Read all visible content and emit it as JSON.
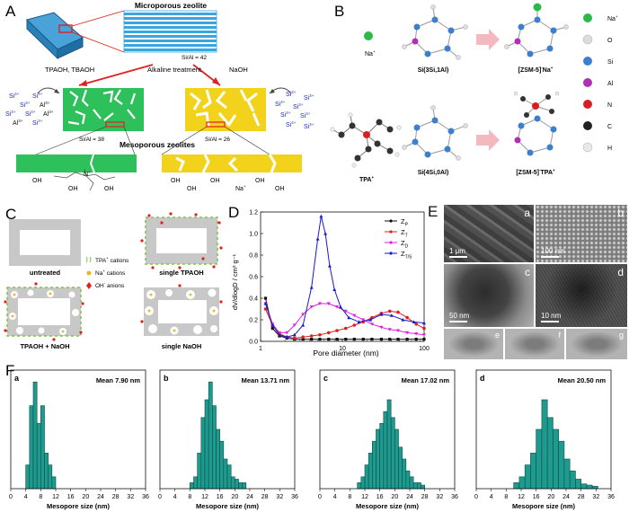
{
  "panels": {
    "A": "A",
    "B": "B",
    "C": "C",
    "D": "D",
    "E": "E",
    "F": "F"
  },
  "panelA": {
    "title": "Microporous zeolite",
    "sial_top": "Si/Al = 42",
    "treatment": "Alkaline treatment",
    "left_reagent": "TPAOH, TBAOH",
    "right_reagent": "NaOH",
    "sial_left": "Si/Al = 38",
    "sial_right": "Si/Al = 26",
    "meso": "Mesoporous zeolites",
    "si": "Si",
    "al": "Al",
    "sup4": "4+",
    "sup3": "3+",
    "oh": "OH",
    "n": "N",
    "na": "Na",
    "plus": "+"
  },
  "panelB": {
    "na_label": "Na",
    "si3_label": "Si(3Si,1Al)",
    "zsm_na_label": "[ZSM-5]",
    "tpa_label": "TPA",
    "si4_label": "Si(4Si,0Al)",
    "zsm_tpa_label": "[ZSM-5]",
    "minus": "-",
    "plus": "+",
    "na_suffix": "Na",
    "tpa_suffix": "TPA",
    "legend": [
      {
        "label": "Na",
        "sup": "+",
        "color": "#2db84a"
      },
      {
        "label": "O",
        "sup": "",
        "color": "#dcdcdc"
      },
      {
        "label": "Si",
        "sup": "",
        "color": "#3c7fd0"
      },
      {
        "label": "Al",
        "sup": "",
        "color": "#b02fb3"
      },
      {
        "label": "N",
        "sup": "",
        "color": "#d92020"
      },
      {
        "label": "C",
        "sup": "",
        "color": "#222222"
      },
      {
        "label": "H",
        "sup": "",
        "color": "#e8e8e8"
      }
    ]
  },
  "panelC": {
    "untreated": "untreated",
    "single_tpaoh": "single TPAOH",
    "tpaoh_naoh": "TPAOH + NaOH",
    "single_naoh": "single NaOH",
    "legend_tpa": "TPA",
    "legend_tpa_tail": " cations",
    "legend_na": "Na",
    "legend_na_tail": " cations",
    "legend_oh": "OH",
    "legend_oh_tail": " anions",
    "plus": "+",
    "minus": "-"
  },
  "chart_data": {
    "type": "line",
    "x_scale": "log",
    "xlabel": "Pore diameter (nm)",
    "ylabel": "dV/dlogD / cm³ g⁻¹",
    "xlim": [
      1,
      100
    ],
    "ylim": [
      0,
      1.2
    ],
    "x_ticks": [
      1,
      10,
      100
    ],
    "y_ticks": [
      0.0,
      0.2,
      0.4,
      0.6,
      0.8,
      1.0,
      1.2
    ],
    "series": [
      {
        "name": "Z_P",
        "sub": "P",
        "color": "#111111",
        "marker": "square",
        "x": [
          1.15,
          1.4,
          1.7,
          2.1,
          2.6,
          3.3,
          4.2,
          5.3,
          6.8,
          8.6,
          11,
          14,
          18,
          23,
          30,
          38,
          48,
          62,
          80,
          100
        ],
        "y": [
          0.4,
          0.12,
          0.05,
          0.03,
          0.02,
          0.02,
          0.02,
          0.02,
          0.02,
          0.02,
          0.02,
          0.02,
          0.02,
          0.02,
          0.02,
          0.02,
          0.02,
          0.02,
          0.02,
          0.02
        ]
      },
      {
        "name": "Z_T",
        "sub": "T",
        "color": "#e02020",
        "marker": "circle",
        "x": [
          1.15,
          1.4,
          1.7,
          2.1,
          2.6,
          3.3,
          4.2,
          5.3,
          6.8,
          8.6,
          11,
          14,
          18,
          23,
          30,
          38,
          48,
          62,
          80,
          100
        ],
        "y": [
          0.3,
          0.15,
          0.07,
          0.04,
          0.03,
          0.04,
          0.05,
          0.06,
          0.08,
          0.1,
          0.12,
          0.15,
          0.18,
          0.22,
          0.26,
          0.28,
          0.27,
          0.22,
          0.16,
          0.12
        ]
      },
      {
        "name": "Z_D",
        "sub": "D",
        "color": "#e020e0",
        "marker": "triangle-down",
        "x": [
          1.15,
          1.4,
          1.7,
          2.1,
          2.6,
          3.3,
          4.2,
          5.3,
          6.8,
          8.6,
          11,
          14,
          18,
          23,
          30,
          38,
          48,
          62,
          80,
          100
        ],
        "y": [
          0.35,
          0.16,
          0.08,
          0.08,
          0.15,
          0.25,
          0.32,
          0.35,
          0.35,
          0.32,
          0.28,
          0.24,
          0.2,
          0.16,
          0.13,
          0.11,
          0.1,
          0.08,
          0.07,
          0.06
        ]
      },
      {
        "name": "Z_TS",
        "sub": "T/S",
        "color": "#1a1acc",
        "marker": "triangle",
        "x": [
          1.15,
          1.4,
          1.7,
          2.1,
          2.6,
          3.3,
          4.2,
          5.0,
          5.5,
          6.2,
          7.0,
          8.0,
          9.5,
          12,
          16,
          22,
          30,
          40,
          55,
          75,
          100
        ],
        "y": [
          0.35,
          0.15,
          0.06,
          0.04,
          0.06,
          0.15,
          0.5,
          0.95,
          1.16,
          1.0,
          0.7,
          0.48,
          0.32,
          0.22,
          0.18,
          0.2,
          0.25,
          0.24,
          0.2,
          0.18,
          0.17
        ]
      }
    ]
  },
  "panelE": {
    "tiles": [
      {
        "label": "a",
        "scale": "1 μm"
      },
      {
        "label": "b",
        "scale": "100 nm"
      },
      {
        "label": "c",
        "scale": "50 nm"
      },
      {
        "label": "d",
        "scale": "10 nm"
      },
      {
        "label": "e",
        "scale": ""
      },
      {
        "label": "f",
        "scale": ""
      },
      {
        "label": "g",
        "scale": ""
      }
    ]
  },
  "histograms": [
    {
      "label": "a",
      "mean": "Mean 7.90 nm",
      "xlabel": "Mesopore size (nm)",
      "xticks": [
        0,
        4,
        8,
        12,
        16,
        20,
        24,
        28,
        32,
        36
      ],
      "bin_width": 1,
      "bin_start": 4,
      "heights": [
        0.2,
        0.7,
        0.9,
        0.55,
        0.7,
        0.3,
        0.2,
        0.1
      ]
    },
    {
      "label": "b",
      "mean": "Mean 13.71 nm",
      "xlabel": "Mesopore size (nm)",
      "xticks": [
        0,
        4,
        8,
        12,
        16,
        20,
        24,
        28,
        32,
        36
      ],
      "bin_width": 1,
      "bin_start": 8,
      "heights": [
        0.05,
        0.1,
        0.3,
        0.6,
        0.75,
        0.9,
        0.7,
        0.5,
        0.4,
        0.25,
        0.2,
        0.1,
        0.08,
        0.05,
        0.05
      ]
    },
    {
      "label": "c",
      "mean": "Mean 17.02 nm",
      "xlabel": "Mesopore size (nm)",
      "xticks": [
        0,
        4,
        8,
        12,
        16,
        20,
        24,
        28,
        32,
        36
      ],
      "bin_width": 1,
      "bin_start": 10,
      "heights": [
        0.05,
        0.1,
        0.2,
        0.3,
        0.4,
        0.5,
        0.55,
        0.65,
        0.75,
        0.6,
        0.5,
        0.35,
        0.25,
        0.15,
        0.1,
        0.05,
        0.05,
        0.03
      ]
    },
    {
      "label": "d",
      "mean": "Mean 20.50 nm",
      "xlabel": "Mesopore size (nm)",
      "xticks": [
        0,
        4,
        8,
        12,
        16,
        20,
        24,
        28,
        32,
        36
      ],
      "bin_width": 1.5,
      "bin_start": 10,
      "heights": [
        0.05,
        0.1,
        0.2,
        0.3,
        0.5,
        0.75,
        0.6,
        0.5,
        0.4,
        0.25,
        0.15,
        0.08,
        0.04,
        0.03,
        0.02
      ]
    }
  ],
  "hist_ylabel": "Number"
}
